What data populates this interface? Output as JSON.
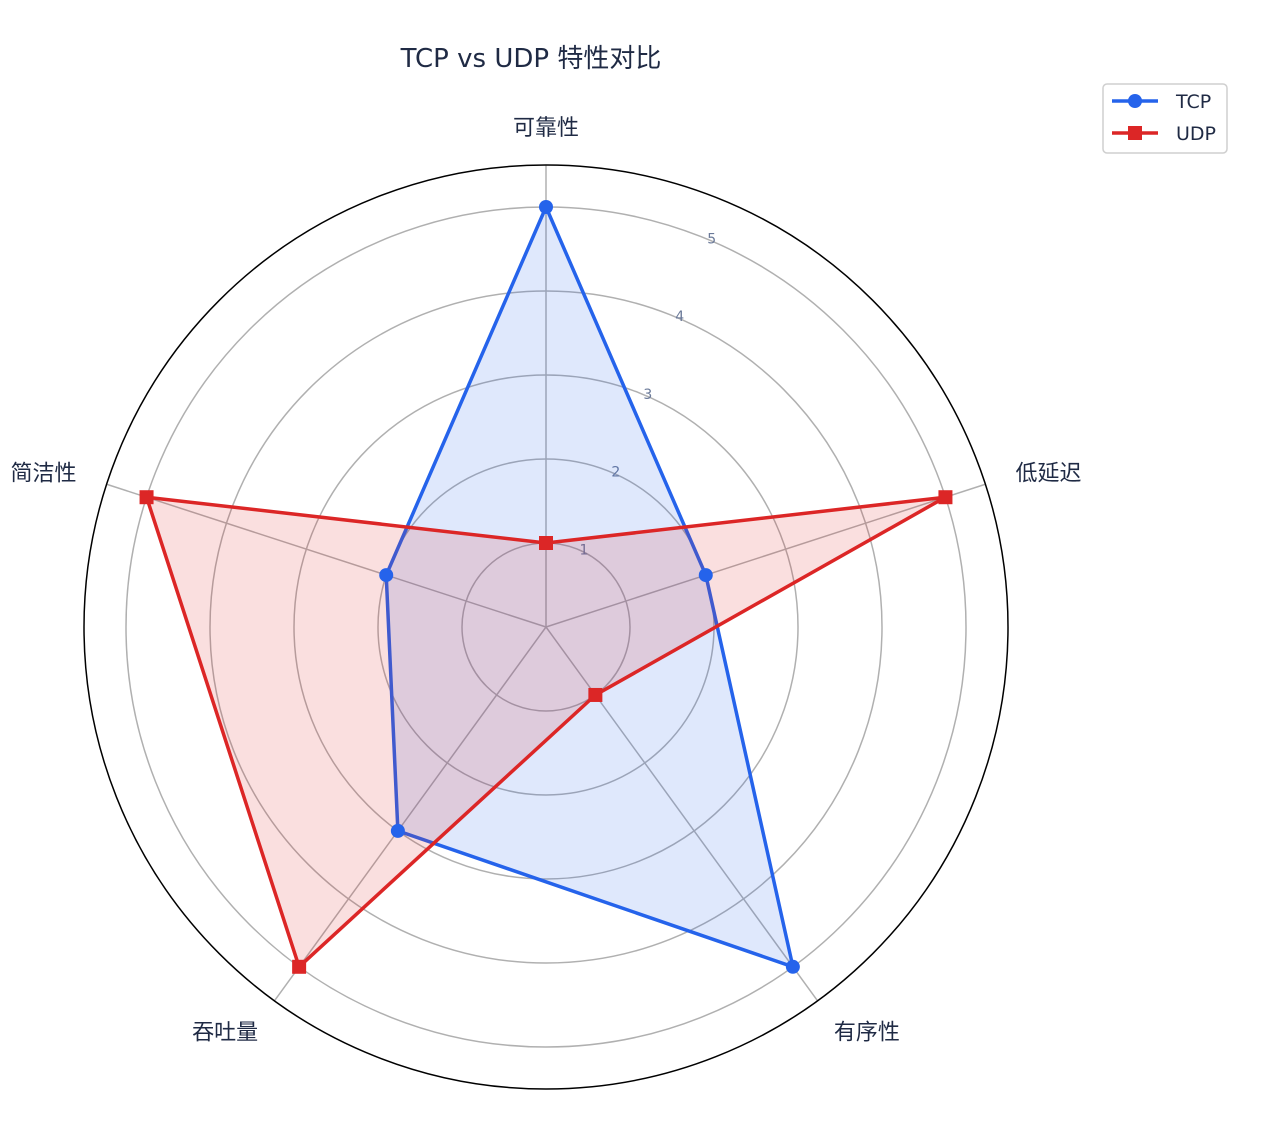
{
  "chart_data": {
    "type": "radar",
    "title": "TCP vs UDP 特性对比",
    "categories": [
      "可靠性",
      "低延迟",
      "有序性",
      "吞吐量",
      "简洁性"
    ],
    "rticks": [
      1,
      2,
      3,
      4,
      5
    ],
    "rlim": [
      0,
      5.5
    ],
    "grid": true,
    "legend_position": "top-right",
    "series": [
      {
        "name": "TCP",
        "values": [
          5,
          2,
          5,
          3,
          2
        ],
        "color": "#2563eb",
        "marker": "circle"
      },
      {
        "name": "UDP",
        "values": [
          1,
          5,
          1,
          5,
          5
        ],
        "color": "#dc2626",
        "marker": "square"
      }
    ]
  }
}
